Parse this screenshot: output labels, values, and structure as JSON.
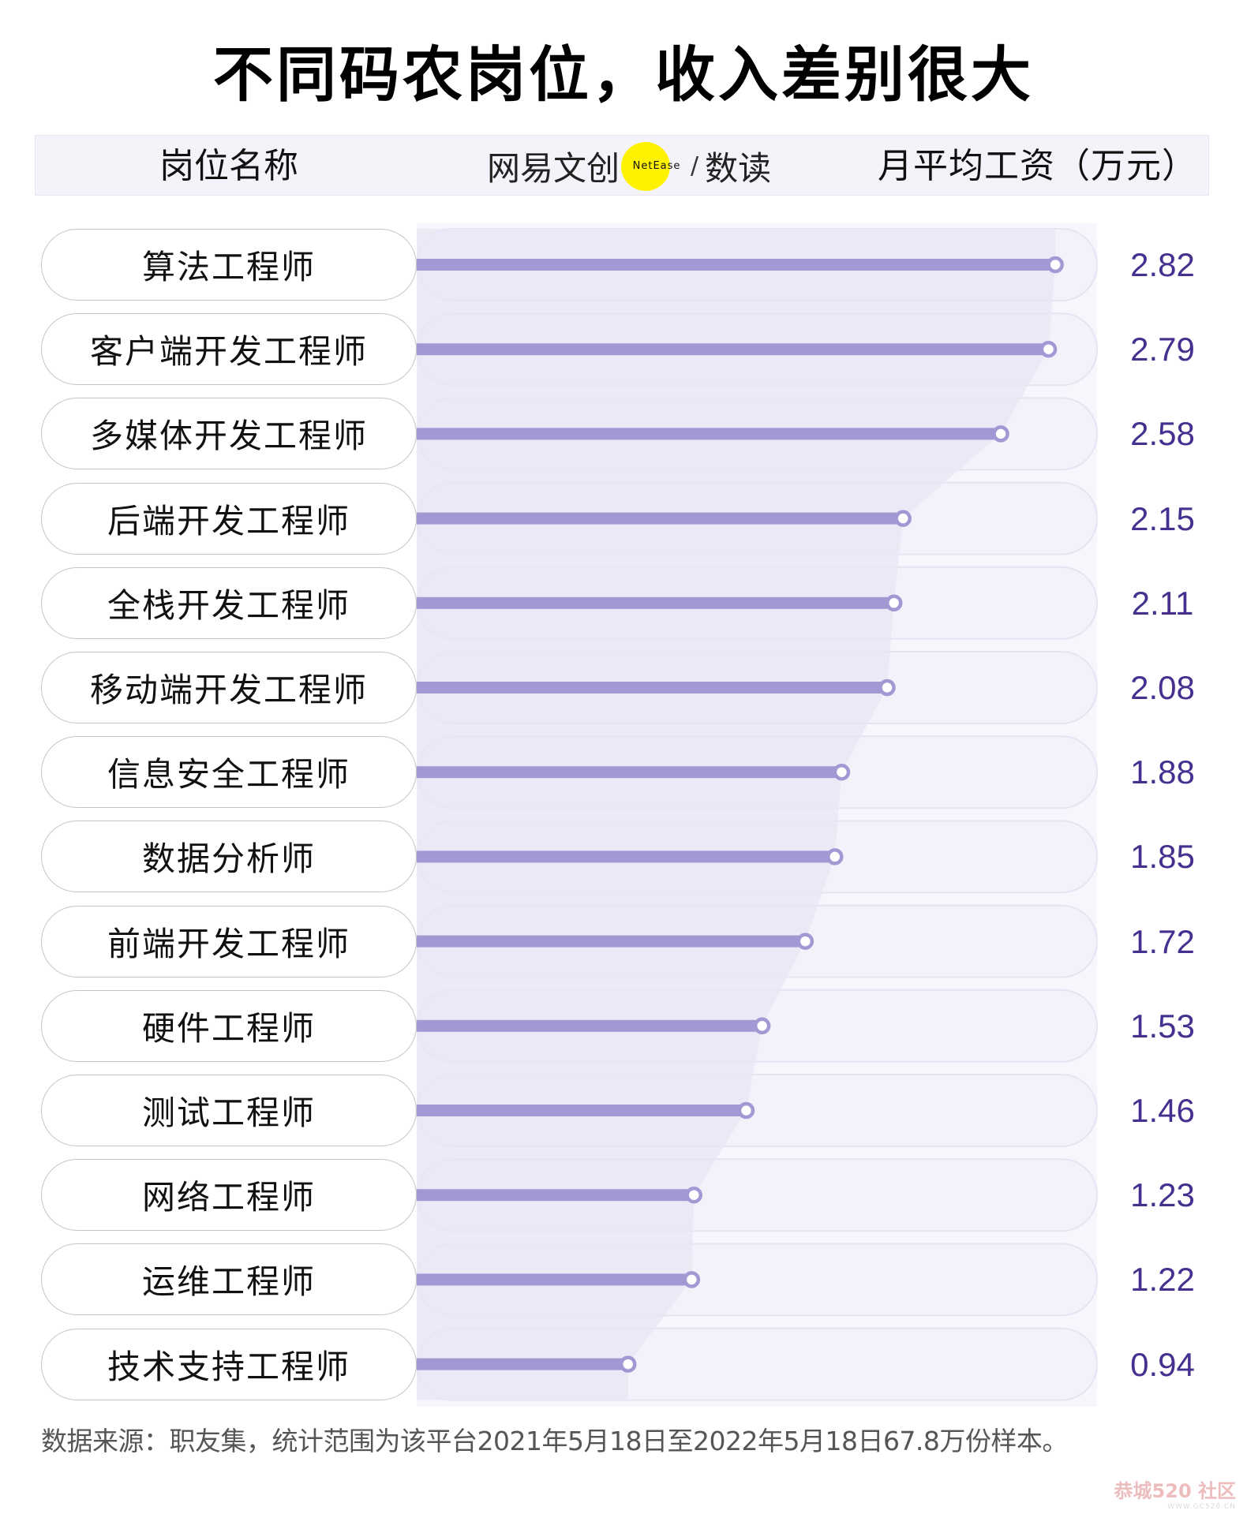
{
  "title": "不同码农岗位，收入差别很大",
  "header": {
    "left_label": "岗位名称",
    "logo": {
      "brand_cn": "网易文创",
      "badge": "NetEase",
      "slash": "/",
      "sub_brand": "数读",
      "badge_color": "#fff200"
    },
    "right_label": "月平均工资（万元）"
  },
  "colors": {
    "bar": "#a298d4",
    "track": "#f3f2fa",
    "track_border": "#e6e3f3",
    "area": "#e9e6f5",
    "value_text": "#45308f",
    "header_band": "#f4f3fa"
  },
  "chart_data": {
    "type": "bar",
    "title": "不同码农岗位，收入差别很大",
    "xlabel": "",
    "ylabel": "月平均工资（万元）",
    "category_header": "岗位名称",
    "orientation": "horizontal",
    "categories": [
      "算法工程师",
      "客户端开发工程师",
      "多媒体开发工程师",
      "后端开发工程师",
      "全栈开发工程师",
      "移动端开发工程师",
      "信息安全工程师",
      "数据分析师",
      "前端开发工程师",
      "硬件工程师",
      "测试工程师",
      "网络工程师",
      "运维工程师",
      "技术支持工程师"
    ],
    "values": [
      2.82,
      2.79,
      2.58,
      2.15,
      2.11,
      2.08,
      1.88,
      1.85,
      1.72,
      1.53,
      1.46,
      1.23,
      1.22,
      0.94
    ],
    "value_labels": [
      "2.82",
      "2.79",
      "2.58",
      "2.15",
      "2.11",
      "2.08",
      "1.88",
      "1.85",
      "1.72",
      "1.53",
      "1.46",
      "1.23",
      "1.22",
      "0.94"
    ],
    "xlim": [
      0,
      3.0
    ],
    "grid": false,
    "legend": null,
    "annotations": [
      "lollipop bars with circular end markers",
      "shaded area connecting bar endpoints"
    ]
  },
  "rows": [
    {
      "label": "算法工程师",
      "value": "2.82"
    },
    {
      "label": "客户端开发工程师",
      "value": "2.79"
    },
    {
      "label": "多媒体开发工程师",
      "value": "2.58"
    },
    {
      "label": "后端开发工程师",
      "value": "2.15"
    },
    {
      "label": "全栈开发工程师",
      "value": "2.11"
    },
    {
      "label": "移动端开发工程师",
      "value": "2.08"
    },
    {
      "label": "信息安全工程师",
      "value": "1.88"
    },
    {
      "label": "数据分析师",
      "value": "1.85"
    },
    {
      "label": "前端开发工程师",
      "value": "1.72"
    },
    {
      "label": "硬件工程师",
      "value": "1.53"
    },
    {
      "label": "测试工程师",
      "value": "1.46"
    },
    {
      "label": "网络工程师",
      "value": "1.23"
    },
    {
      "label": "运维工程师",
      "value": "1.22"
    },
    {
      "label": "技术支持工程师",
      "value": "0.94"
    }
  ],
  "footnote": "数据来源：职友集，统计范围为该平台2021年5月18日至2022年5月18日67.8万份样本。",
  "watermark": {
    "top": "恭城520 社区",
    "bottom": "WWW.GC520.CN"
  }
}
